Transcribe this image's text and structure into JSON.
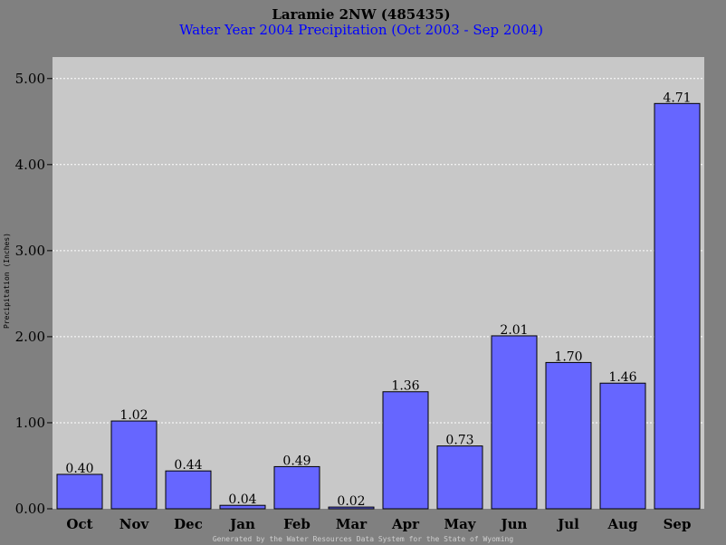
{
  "chart_data": {
    "type": "bar",
    "title": "Laramie 2NW (485435)",
    "subtitle": "Water Year 2004 Precipitation (Oct 2003 - Sep 2004)",
    "ylabel": "Precipitation (Inches)",
    "xlabel": "",
    "categories": [
      "Oct",
      "Nov",
      "Dec",
      "Jan",
      "Feb",
      "Mar",
      "Apr",
      "May",
      "Jun",
      "Jul",
      "Aug",
      "Sep"
    ],
    "values": [
      0.4,
      1.02,
      0.44,
      0.04,
      0.49,
      0.02,
      1.36,
      0.73,
      2.01,
      1.7,
      1.46,
      4.71
    ],
    "value_labels": [
      "0.40",
      "1.02",
      "0.44",
      "0.04",
      "0.49",
      "0.02",
      "1.36",
      "0.73",
      "2.01",
      "1.70",
      "1.46",
      "4.71"
    ],
    "ylim": [
      0,
      5.25
    ],
    "yticks": [
      0,
      1,
      2,
      3,
      4,
      5
    ],
    "ytick_labels": [
      "0.00",
      "1.00",
      "2.00",
      "3.00",
      "4.00",
      "5.00"
    ],
    "grid": true,
    "legend": "none"
  },
  "footer": "Generated by the Water Resources Data System for the State of Wyoming",
  "colors": {
    "background": "#808080",
    "plot_area": "#c8c8c8",
    "bar_fill": "#6666ff",
    "bar_stroke": "#000000",
    "grid": "#ffffff",
    "title": "#000000",
    "subtitle": "#0000ff"
  }
}
